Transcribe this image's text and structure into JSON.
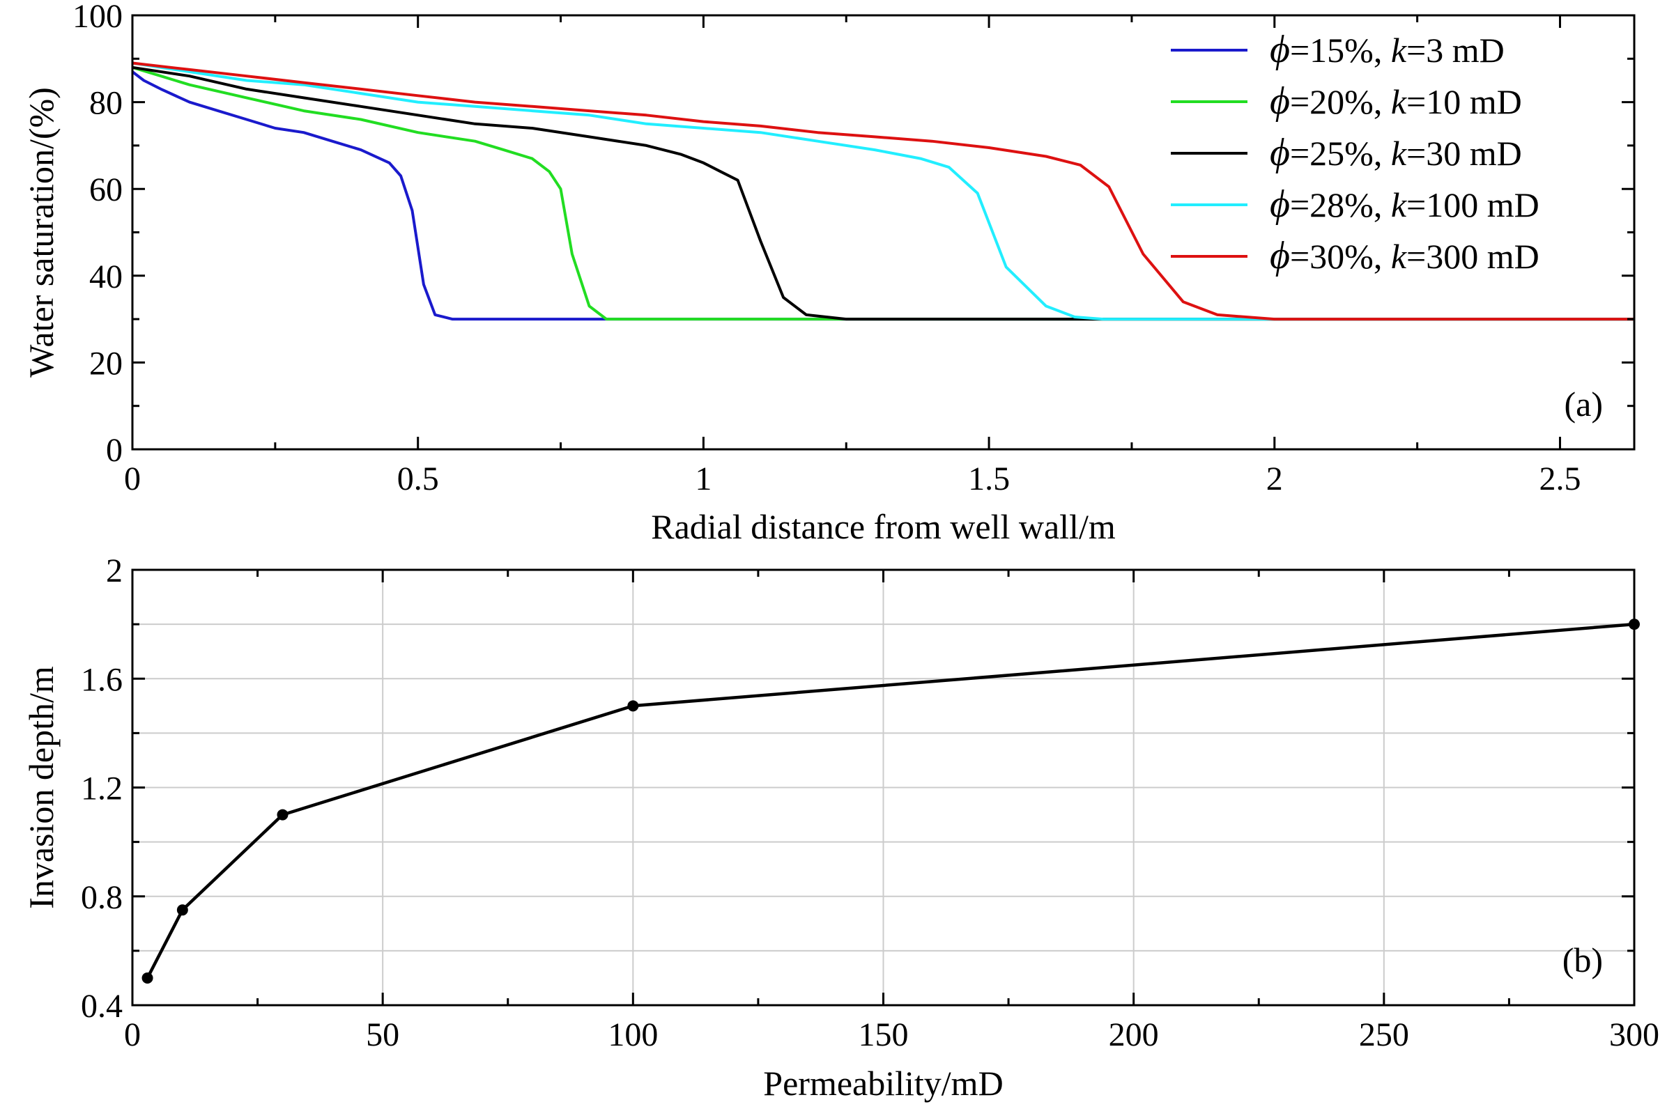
{
  "chart_data": [
    {
      "type": "line",
      "panel_label": "(a)",
      "xlabel": "Radial distance from well wall/m",
      "ylabel": "Water saturation/(%)",
      "xlim": [
        0,
        2.63
      ],
      "ylim": [
        0,
        100
      ],
      "xticks": [
        0,
        0.5,
        1,
        1.5,
        2,
        2.5
      ],
      "xtick_labels": [
        "0",
        "0.5",
        "1",
        "1.5",
        "2",
        "2.5"
      ],
      "yticks": [
        0,
        20,
        40,
        60,
        80,
        100
      ],
      "ytick_labels": [
        "0",
        "20",
        "40",
        "60",
        "80",
        "100"
      ],
      "grid": false,
      "legend_position": "top-right",
      "series": [
        {
          "legend": {
            "phi": "ϕ",
            "porosity": "=15%, ",
            "k": "k",
            "perm": "=3 mD"
          },
          "color": "#1a1acc",
          "x": [
            0,
            0.02,
            0.05,
            0.1,
            0.15,
            0.2,
            0.25,
            0.3,
            0.35,
            0.4,
            0.45,
            0.47,
            0.49,
            0.51,
            0.53,
            0.56,
            0.6,
            1.0,
            2.63
          ],
          "y": [
            87,
            85,
            83,
            80,
            78,
            76,
            74,
            73,
            71,
            69,
            66,
            63,
            55,
            38,
            31,
            30,
            30,
            30,
            30
          ]
        },
        {
          "legend": {
            "phi": "ϕ",
            "porosity": "=20%, ",
            "k": "k",
            "perm": "=10 mD"
          },
          "color": "#22dd22",
          "x": [
            0,
            0.05,
            0.1,
            0.2,
            0.3,
            0.4,
            0.5,
            0.6,
            0.65,
            0.7,
            0.73,
            0.75,
            0.77,
            0.8,
            0.83,
            0.87,
            1.2,
            2.63
          ],
          "y": [
            88,
            86,
            84,
            81,
            78,
            76,
            73,
            71,
            69,
            67,
            64,
            60,
            45,
            33,
            30,
            30,
            30,
            30
          ]
        },
        {
          "legend": {
            "phi": "ϕ",
            "porosity": "=25%, ",
            "k": "k",
            "perm": "=30 mD"
          },
          "color": "#000000",
          "x": [
            0,
            0.1,
            0.2,
            0.3,
            0.4,
            0.5,
            0.6,
            0.7,
            0.8,
            0.9,
            0.96,
            1.0,
            1.03,
            1.06,
            1.1,
            1.14,
            1.18,
            1.25,
            1.6,
            2.63
          ],
          "y": [
            88,
            86,
            83,
            81,
            79,
            77,
            75,
            74,
            72,
            70,
            68,
            66,
            64,
            62,
            48,
            35,
            31,
            30,
            30,
            30
          ]
        },
        {
          "legend": {
            "phi": "ϕ",
            "porosity": "=28%, ",
            "k": "k",
            "perm": "=100 mD"
          },
          "color": "#22eeff",
          "x": [
            0,
            0.1,
            0.2,
            0.3,
            0.4,
            0.5,
            0.6,
            0.7,
            0.8,
            0.9,
            1.0,
            1.1,
            1.2,
            1.3,
            1.38,
            1.43,
            1.48,
            1.53,
            1.6,
            1.65,
            1.7,
            2.0,
            2.63
          ],
          "y": [
            89,
            87,
            85,
            84,
            82,
            80,
            79,
            78,
            77,
            75,
            74,
            73,
            71,
            69,
            67,
            65,
            59,
            42,
            33,
            30.5,
            30,
            30,
            30
          ]
        },
        {
          "legend": {
            "phi": "ϕ",
            "porosity": "=30%, ",
            "k": "k",
            "perm": "=300 mD"
          },
          "color": "#dd1111",
          "x": [
            0,
            0.1,
            0.2,
            0.3,
            0.4,
            0.5,
            0.6,
            0.7,
            0.8,
            0.9,
            1.0,
            1.1,
            1.2,
            1.3,
            1.4,
            1.5,
            1.6,
            1.66,
            1.71,
            1.77,
            1.84,
            1.9,
            2.0,
            2.63
          ],
          "y": [
            89,
            87.5,
            86,
            84.5,
            83,
            81.5,
            80,
            79,
            78,
            77,
            75.5,
            74.5,
            73,
            72,
            71,
            69.5,
            67.5,
            65.5,
            60.5,
            45,
            34,
            31,
            30,
            30
          ]
        }
      ]
    },
    {
      "type": "line",
      "panel_label": "(b)",
      "xlabel": "Permeability/mD",
      "ylabel": "Invasion depth/m",
      "xlim": [
        0,
        300
      ],
      "ylim": [
        0.4,
        2
      ],
      "xticks": [
        0,
        50,
        100,
        150,
        200,
        250,
        300
      ],
      "xtick_labels": [
        "0",
        "50",
        "100",
        "150",
        "200",
        "250",
        "300"
      ],
      "yticks": [
        0.4,
        0.8,
        1.2,
        1.6,
        2
      ],
      "ytick_labels": [
        "0.4",
        "0.8",
        "1.2",
        "1.6",
        "2"
      ],
      "grid": true,
      "series": [
        {
          "color": "#000000",
          "x": [
            3,
            10,
            30,
            100,
            300
          ],
          "y": [
            0.5,
            0.75,
            1.1,
            1.5,
            1.8
          ]
        }
      ]
    }
  ]
}
